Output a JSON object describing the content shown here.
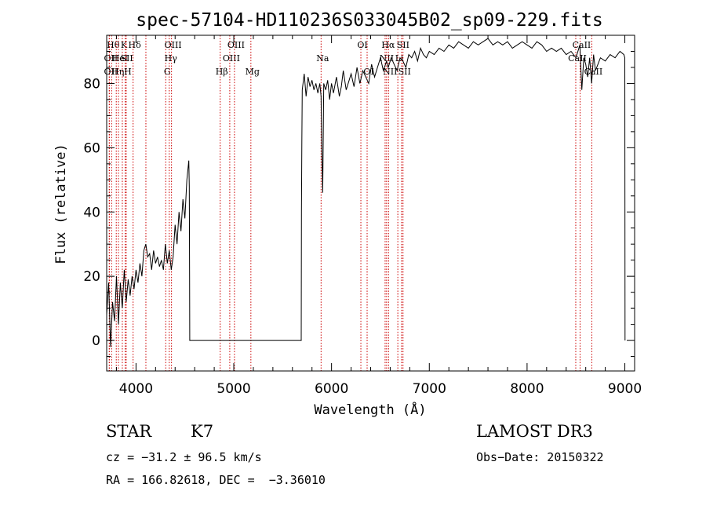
{
  "chart_data": {
    "type": "line",
    "title": "spec-57104-HD110236S033045B02_sp09-229.fits",
    "xlabel": "Wavelength (Å)",
    "ylabel": "Flux (relative)",
    "xlim": [
      3700,
      9100
    ],
    "ylim": [
      -9.5,
      95
    ],
    "xticks": [
      4000,
      5000,
      6000,
      7000,
      8000,
      9000
    ],
    "yticks": [
      0,
      20,
      40,
      60,
      80
    ],
    "grid": false,
    "series": [
      {
        "x": [
          3700,
          3720,
          3740,
          3760,
          3780,
          3800,
          3820,
          3840,
          3860,
          3880,
          3900,
          3920,
          3940,
          3960,
          3980,
          4000,
          4020,
          4040,
          4060,
          4080,
          4100,
          4120,
          4140,
          4160,
          4180,
          4200,
          4220,
          4240,
          4260,
          4280,
          4300,
          4320,
          4340,
          4360,
          4380,
          4400,
          4420,
          4440,
          4460,
          4480,
          4500,
          4520,
          4540,
          4545,
          4548,
          4550,
          5690,
          5692,
          5696,
          5700,
          5720,
          5740,
          5760,
          5780,
          5800,
          5820,
          5840,
          5860,
          5880,
          5893,
          5900,
          5910,
          5920,
          5940,
          5960,
          5980,
          6000,
          6020,
          6050,
          6080,
          6100,
          6120,
          6150,
          6180,
          6200,
          6230,
          6260,
          6290,
          6320,
          6350,
          6380,
          6410,
          6440,
          6470,
          6500,
          6530,
          6563,
          6580,
          6610,
          6640,
          6670,
          6700,
          6730,
          6760,
          6790,
          6820,
          6850,
          6880,
          6910,
          6940,
          6970,
          7000,
          7050,
          7100,
          7150,
          7200,
          7250,
          7300,
          7350,
          7400,
          7450,
          7500,
          7550,
          7600,
          7650,
          7700,
          7750,
          7800,
          7850,
          7900,
          7950,
          8000,
          8050,
          8100,
          8150,
          8200,
          8250,
          8300,
          8350,
          8400,
          8450,
          8500,
          8540,
          8560,
          8580,
          8600,
          8620,
          8640,
          8660,
          8680,
          8700,
          8750,
          8800,
          8850,
          8900,
          8950,
          8990,
          9000,
          9002
        ],
        "values": [
          8,
          18,
          -2,
          12,
          6,
          20,
          5,
          18,
          10,
          22,
          12,
          19,
          14,
          20,
          16,
          22,
          18,
          24,
          20,
          28,
          30,
          26,
          27,
          22,
          28,
          24,
          26,
          23,
          25,
          22,
          30,
          24,
          28,
          22,
          26,
          36,
          30,
          40,
          34,
          44,
          38,
          50,
          56,
          48,
          20,
          0,
          0,
          40,
          62,
          78,
          83,
          76,
          82,
          79,
          81,
          78,
          80,
          77,
          80,
          76,
          60,
          46,
          80,
          78,
          81,
          75,
          80,
          77,
          82,
          76,
          79,
          84,
          78,
          81,
          83,
          79,
          85,
          80,
          84,
          82,
          80,
          86,
          82,
          85,
          88,
          84,
          87,
          85,
          88,
          86,
          84,
          88,
          87,
          85,
          89,
          88,
          90,
          87,
          91,
          89,
          88,
          90,
          89,
          91,
          90,
          92,
          91,
          93,
          92,
          91,
          93,
          92,
          93,
          94,
          92,
          93,
          92,
          93,
          91,
          92,
          93,
          92,
          91,
          93,
          92,
          90,
          91,
          90,
          91,
          89,
          90,
          88,
          92,
          78,
          88,
          86,
          82,
          88,
          80,
          89,
          84,
          88,
          87,
          89,
          88,
          90,
          89,
          88,
          0
        ]
      }
    ],
    "lines": [
      {
        "x": 3750,
        "label": "Hθ",
        "row": 0
      },
      {
        "x": 3727,
        "label": "OII",
        "row": 1
      },
      {
        "x": 3727,
        "label": "OII",
        "row": 2
      },
      {
        "x": 3798,
        "label": "Hη",
        "row": 2
      },
      {
        "x": 3820,
        "label": "HeI",
        "row": 1
      },
      {
        "x": 3860,
        "label": "K",
        "row": 0
      },
      {
        "x": 3889,
        "label": "SII",
        "row": 1
      },
      {
        "x": 3900,
        "label": "H",
        "row": 2
      },
      {
        "x": 3970,
        "label": "Hδ",
        "row": 0
      },
      {
        "x": 4101,
        "label": "",
        "row": -1
      },
      {
        "x": 4304,
        "label": "G",
        "row": 2
      },
      {
        "x": 4340,
        "label": "Hγ",
        "row": 1
      },
      {
        "x": 4363,
        "label": "OIII",
        "row": 0
      },
      {
        "x": 4861,
        "label": "Hβ",
        "row": 2
      },
      {
        "x": 4959,
        "label": "OIII",
        "row": 1
      },
      {
        "x": 5007,
        "label": "OIII",
        "row": 0
      },
      {
        "x": 5175,
        "label": "Mg",
        "row": 2
      },
      {
        "x": 5893,
        "label": "Na",
        "row": 1
      },
      {
        "x": 6300,
        "label": "OI",
        "row": 0
      },
      {
        "x": 6364,
        "label": "OI",
        "row": 2
      },
      {
        "x": 6548,
        "label": "NII",
        "row": 1
      },
      {
        "x": 6563,
        "label": "Hα",
        "row": 0
      },
      {
        "x": 6583,
        "label": "NII",
        "row": 2
      },
      {
        "x": 6678,
        "label": "Li",
        "row": 1
      },
      {
        "x": 6716,
        "label": "SII",
        "row": 0
      },
      {
        "x": 6731,
        "label": "SII",
        "row": 2
      },
      {
        "x": 8498,
        "label": "CaII",
        "row": 1
      },
      {
        "x": 8542,
        "label": "CaII",
        "row": 0
      },
      {
        "x": 8662,
        "label": "CaII",
        "row": 2
      }
    ]
  },
  "info": {
    "object_type": "STAR",
    "subclass": "K7",
    "survey": "LAMOST DR3",
    "cz": "cz = −31.2 ± 96.5 km/s",
    "obs_date": "Obs−Date: 20150322",
    "radec": "RA = 166.82618, DEC =  −3.36010"
  },
  "colors": {
    "line_marker": "#cc0000",
    "spectrum": "#000000",
    "background": "#ffffff"
  }
}
